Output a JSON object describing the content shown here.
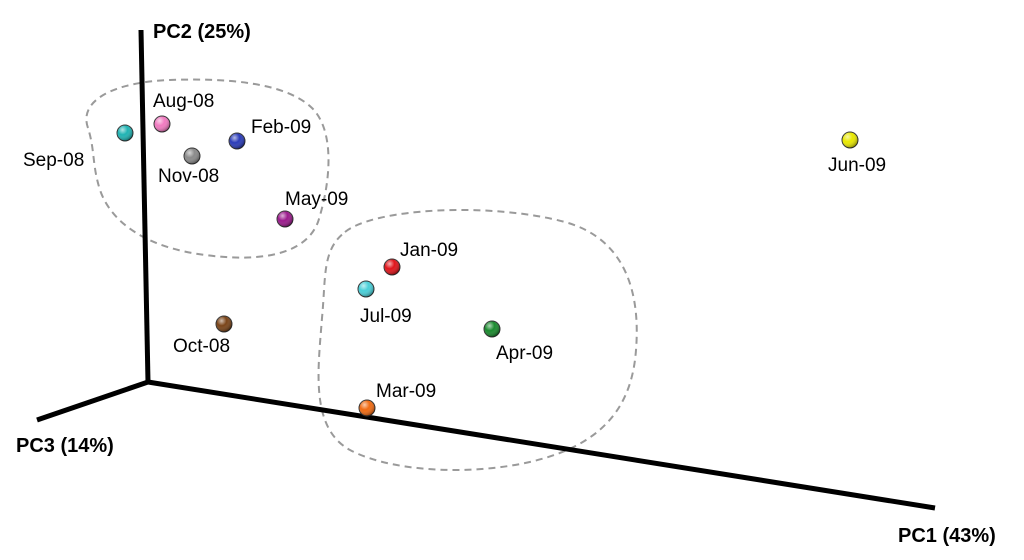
{
  "chart_data": {
    "type": "scatter",
    "projection": "3d",
    "axes": {
      "pc1": "PC1 (43%)",
      "pc2": "PC2 (25%)",
      "pc3": "PC3 (14%)"
    },
    "points": [
      {
        "label": "Aug-08",
        "color": "#f07ac0"
      },
      {
        "label": "Sep-08",
        "color": "#1fb3b3"
      },
      {
        "label": "Feb-09",
        "color": "#2a3bb8"
      },
      {
        "label": "Nov-08",
        "color": "#8a8a8a"
      },
      {
        "label": "May-09",
        "color": "#9b1a8c"
      },
      {
        "label": "Jun-09",
        "color": "#e8e800"
      },
      {
        "label": "Jan-09",
        "color": "#e0141a"
      },
      {
        "label": "Jul-09",
        "color": "#49cfd8"
      },
      {
        "label": "Oct-08",
        "color": "#7a4418"
      },
      {
        "label": "Apr-09",
        "color": "#1a8a2e"
      },
      {
        "label": "Mar-09",
        "color": "#f06a12"
      }
    ],
    "clusters": [
      {
        "members": [
          "Aug-08",
          "Sep-08",
          "Feb-09",
          "Nov-08",
          "May-09"
        ]
      },
      {
        "members": [
          "Jan-09",
          "Jul-09",
          "Apr-09",
          "Mar-09"
        ]
      }
    ],
    "grid": false,
    "legend": "none"
  }
}
